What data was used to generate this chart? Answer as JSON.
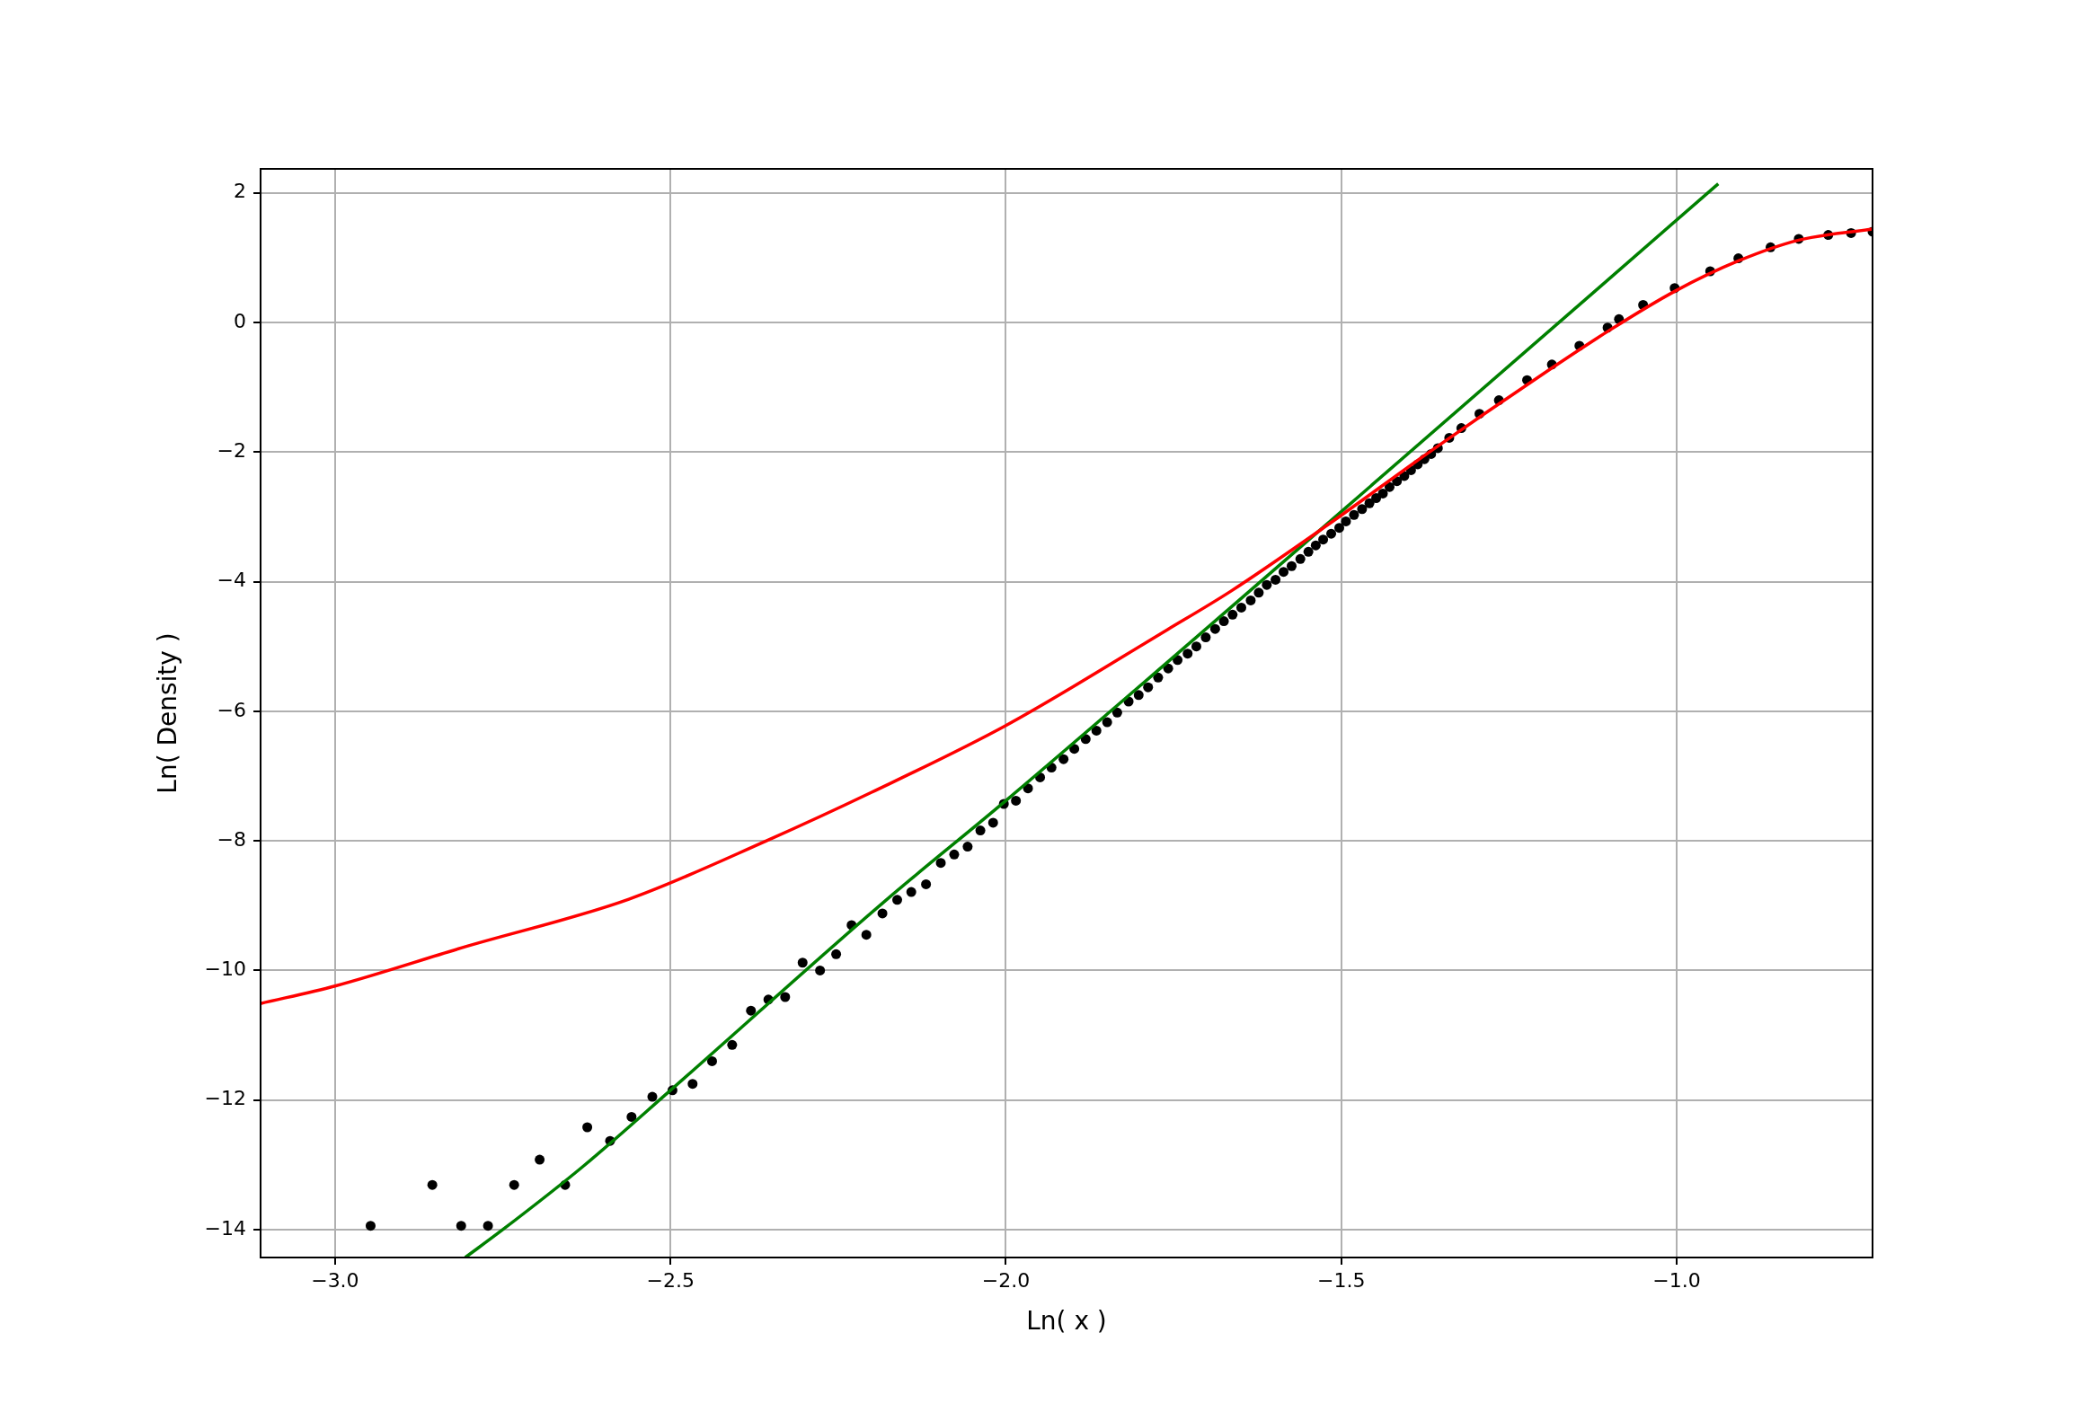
{
  "chart_data": {
    "type": "scatter",
    "xlabel": "Ln( x )",
    "ylabel": "Ln( Density )",
    "xlim": [
      -3.111,
      -0.708
    ],
    "ylim": [
      -14.43,
      2.37
    ],
    "xticks": [
      {
        "value": -3,
        "label": "−3.0"
      },
      {
        "value": -2.5,
        "label": "−2.5"
      },
      {
        "value": -2,
        "label": "−2.0"
      },
      {
        "value": -1.5,
        "label": "−1.5"
      },
      {
        "value": -1,
        "label": "−1.0"
      }
    ],
    "yticks": [
      2,
      0,
      {
        "value": -2,
        "label": "−2"
      },
      {
        "value": -4,
        "label": "−4"
      },
      {
        "value": -6,
        "label": "−6"
      },
      {
        "value": -8,
        "label": "−8"
      },
      {
        "value": -10,
        "label": "−10"
      },
      {
        "value": -12,
        "label": "−12"
      },
      {
        "value": -14,
        "label": "−14"
      }
    ],
    "grid": true,
    "series": [
      {
        "type": "line",
        "color": "#ff0000",
        "marker": "none",
        "x": [
          -3.111,
          -3.0,
          -2.811,
          -2.562,
          -2.357,
          -2.2,
          -2.0,
          -1.759,
          -1.665,
          -1.521,
          -1.366,
          -1.2,
          -1.1,
          -1.003,
          -0.908,
          -0.818,
          -0.708
        ],
        "values": [
          -10.51,
          -10.24,
          -9.65,
          -8.9,
          -8.0,
          -7.25,
          -6.22,
          -4.74,
          -4.15,
          -3.13,
          -1.98,
          -0.8,
          -0.12,
          0.48,
          0.95,
          1.27,
          1.44
        ]
      },
      {
        "type": "line",
        "color": "#008000",
        "marker": "none",
        "x": [
          -2.806,
          -2.75,
          -2.631,
          -2.5,
          -2.177,
          -2.0,
          -1.5,
          -0.938
        ],
        "values": [
          -14.43,
          -14.0,
          -13.03,
          -11.85,
          -8.9,
          -7.38,
          -2.92,
          2.14
        ]
      },
      {
        "type": "scatter",
        "color": "#000000",
        "marker": "circle",
        "x": [
          -2.947,
          -2.855,
          -2.812,
          -2.772,
          -2.733,
          -2.695,
          -2.657,
          -2.624,
          -2.59,
          -2.558,
          -2.527,
          -2.497,
          -2.467,
          -2.438,
          -2.408,
          -2.38,
          -2.354,
          -2.329,
          -2.303,
          -2.277,
          -2.253,
          -2.23,
          -2.208,
          -2.184,
          -2.162,
          -2.141,
          -2.119,
          -2.097,
          -2.077,
          -2.057,
          -2.038,
          -2.019,
          -2.003,
          -1.985,
          -1.967,
          -1.949,
          -1.932,
          -1.914,
          -1.898,
          -1.881,
          -1.865,
          -1.849,
          -1.834,
          -1.817,
          -1.802,
          -1.788,
          -1.773,
          -1.758,
          -1.744,
          -1.729,
          -1.716,
          -1.702,
          -1.688,
          -1.675,
          -1.662,
          -1.649,
          -1.635,
          -1.623,
          -1.611,
          -1.598,
          -1.586,
          -1.574,
          -1.561,
          -1.549,
          -1.538,
          -1.527,
          -1.515,
          -1.503,
          -1.493,
          -1.481,
          -1.469,
          -1.458,
          -1.448,
          -1.438,
          -1.428,
          -1.417,
          -1.406,
          -1.396,
          -1.386,
          -1.376,
          -1.366,
          -1.356,
          -1.339,
          -1.321,
          -1.294,
          -1.265,
          -1.223,
          -1.186,
          -1.145,
          -1.103,
          -1.086,
          -1.05,
          -1.003,
          -0.95,
          -0.908,
          -0.86,
          -0.818,
          -0.774,
          -0.74,
          -0.708
        ],
        "values": [
          -13.94,
          -13.31,
          -13.94,
          -13.94,
          -13.31,
          -12.92,
          -13.31,
          -12.42,
          -12.63,
          -12.26,
          -11.95,
          -11.85,
          -11.75,
          -11.4,
          -11.15,
          -10.62,
          -10.45,
          -10.41,
          -9.88,
          -10.0,
          -9.75,
          -9.3,
          -9.45,
          -9.12,
          -8.91,
          -8.79,
          -8.67,
          -8.34,
          -8.21,
          -8.09,
          -7.84,
          -7.72,
          -7.43,
          -7.38,
          -7.19,
          -7.02,
          -6.87,
          -6.74,
          -6.58,
          -6.43,
          -6.3,
          -6.17,
          -6.02,
          -5.85,
          -5.75,
          -5.63,
          -5.48,
          -5.34,
          -5.21,
          -5.11,
          -5.0,
          -4.86,
          -4.73,
          -4.61,
          -4.51,
          -4.4,
          -4.29,
          -4.17,
          -4.05,
          -3.97,
          -3.85,
          -3.76,
          -3.65,
          -3.54,
          -3.44,
          -3.35,
          -3.26,
          -3.17,
          -3.07,
          -2.97,
          -2.88,
          -2.79,
          -2.71,
          -2.64,
          -2.54,
          -2.45,
          -2.37,
          -2.28,
          -2.19,
          -2.11,
          -2.03,
          -1.94,
          -1.78,
          -1.63,
          -1.41,
          -1.2,
          -0.89,
          -0.65,
          -0.36,
          -0.08,
          0.05,
          0.27,
          0.53,
          0.79,
          0.99,
          1.16,
          1.29,
          1.35,
          1.38,
          1.4
        ]
      }
    ]
  }
}
